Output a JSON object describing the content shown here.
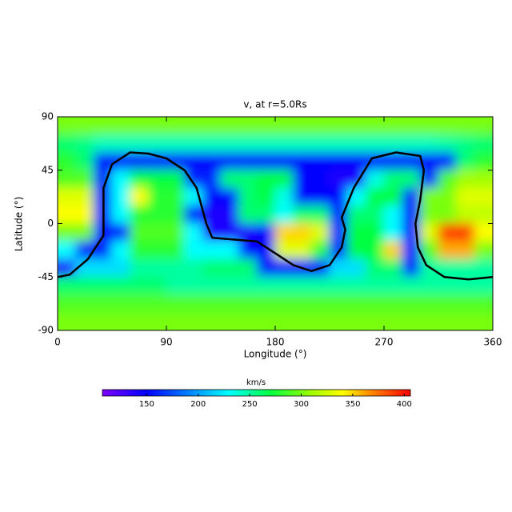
{
  "chart_data": {
    "type": "heatmap",
    "title": "v, at r=5.0Rs",
    "x_label": "Longitude (°)",
    "y_label": "Latitude (°)",
    "xlim": [
      0,
      360
    ],
    "ylim": [
      -90,
      90
    ],
    "xticks": [
      0,
      90,
      180,
      270,
      360
    ],
    "yticks": [
      -90,
      -45,
      0,
      45,
      90
    ],
    "z": [
      [
        300,
        300,
        300,
        300,
        300,
        300,
        300,
        300,
        300,
        300,
        300,
        300,
        300,
        300,
        300,
        300,
        300,
        300,
        300,
        300,
        300,
        300,
        300,
        300
      ],
      [
        260,
        255,
        245,
        245,
        245,
        245,
        245,
        245,
        245,
        245,
        245,
        245,
        245,
        245,
        245,
        245,
        245,
        245,
        245,
        245,
        245,
        250,
        255,
        260
      ],
      [
        280,
        260,
        150,
        150,
        150,
        150,
        150,
        150,
        150,
        150,
        150,
        150,
        150,
        150,
        150,
        150,
        150,
        150,
        150,
        150,
        150,
        150,
        260,
        280
      ],
      [
        290,
        290,
        150,
        230,
        270,
        270,
        270,
        160,
        160,
        260,
        260,
        270,
        270,
        150,
        150,
        140,
        140,
        235,
        260,
        260,
        150,
        290,
        310,
        310
      ],
      [
        330,
        330,
        150,
        230,
        340,
        280,
        280,
        230,
        150,
        150,
        260,
        270,
        235,
        150,
        150,
        150,
        230,
        270,
        270,
        150,
        300,
        300,
        330,
        330
      ],
      [
        340,
        340,
        150,
        230,
        280,
        280,
        280,
        150,
        140,
        140,
        260,
        260,
        230,
        260,
        260,
        150,
        260,
        260,
        230,
        150,
        300,
        300,
        320,
        320
      ],
      [
        300,
        300,
        150,
        150,
        290,
        290,
        290,
        230,
        140,
        140,
        140,
        150,
        350,
        350,
        330,
        150,
        270,
        270,
        230,
        150,
        330,
        390,
        390,
        340
      ],
      [
        230,
        150,
        150,
        230,
        280,
        280,
        280,
        230,
        230,
        230,
        150,
        150,
        330,
        330,
        280,
        150,
        270,
        270,
        350,
        150,
        290,
        360,
        360,
        300
      ],
      [
        140,
        220,
        220,
        220,
        250,
        250,
        250,
        250,
        260,
        260,
        260,
        150,
        150,
        150,
        150,
        220,
        220,
        260,
        260,
        150,
        250,
        250,
        250,
        250
      ],
      [
        260,
        260,
        260,
        260,
        260,
        260,
        250,
        250,
        250,
        250,
        250,
        250,
        250,
        250,
        250,
        250,
        250,
        250,
        250,
        250,
        250,
        250,
        250,
        250
      ],
      [
        290,
        290,
        290,
        290,
        290,
        290,
        290,
        290,
        290,
        290,
        290,
        290,
        290,
        290,
        290,
        290,
        290,
        290,
        290,
        290,
        290,
        290,
        290,
        290
      ],
      [
        300,
        300,
        300,
        300,
        300,
        300,
        300,
        300,
        300,
        300,
        300,
        300,
        300,
        300,
        300,
        300,
        300,
        300,
        300,
        300,
        300,
        300,
        300,
        300
      ]
    ],
    "neutral_line": {
      "color": "#000000",
      "x": [
        0,
        10,
        25,
        38,
        38,
        45,
        60,
        75,
        90,
        105,
        115,
        123,
        128,
        165,
        180,
        195,
        210,
        225,
        235,
        238,
        235,
        245,
        260,
        280,
        300,
        303,
        300,
        296,
        298,
        305,
        320,
        340,
        360
      ],
      "y": [
        -45,
        -43,
        -30,
        -10,
        30,
        50,
        60,
        59,
        55,
        45,
        30,
        0,
        -12,
        -15,
        -25,
        -35,
        -40,
        -35,
        -20,
        -5,
        5,
        30,
        55,
        60,
        57,
        45,
        20,
        0,
        -20,
        -35,
        -45,
        -47,
        -45
      ]
    },
    "colorbar": {
      "label": "km/s",
      "lim": [
        107,
        406
      ],
      "ticks": [
        150,
        200,
        250,
        300,
        350,
        400
      ],
      "colorscale": [
        [
          107,
          "#8000ff"
        ],
        [
          150,
          "#0000ff"
        ],
        [
          230,
          "#00ffff"
        ],
        [
          270,
          "#00ff40"
        ],
        [
          310,
          "#a0ff00"
        ],
        [
          340,
          "#ffff00"
        ],
        [
          370,
          "#ff8000"
        ],
        [
          406,
          "#ff0000"
        ]
      ]
    }
  }
}
